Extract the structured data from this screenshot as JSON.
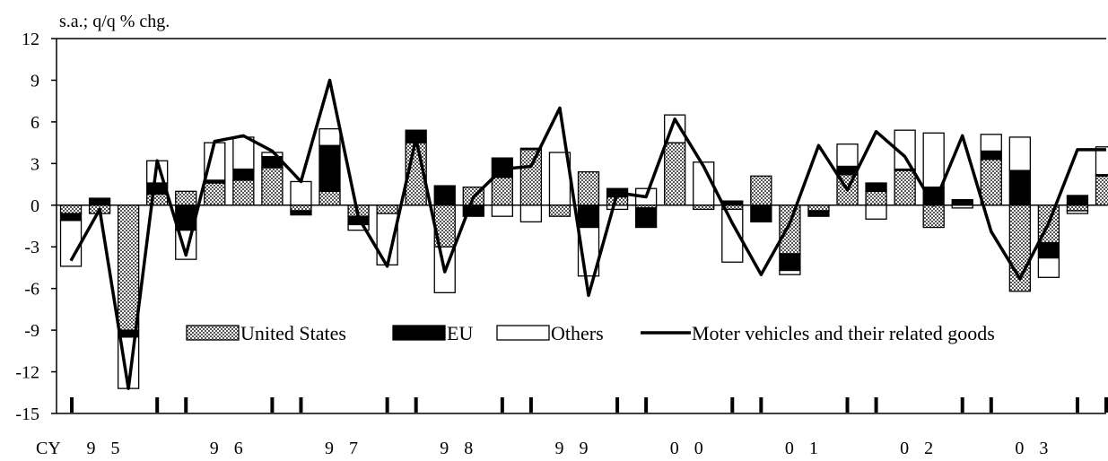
{
  "chart_data": {
    "type": "bar",
    "stacked": true,
    "unit_label": "s.a.; q/q % chg.",
    "ylim": [
      -15,
      12
    ],
    "yticks": [
      "12",
      "9",
      "6",
      "3",
      "0",
      "-3",
      "-6",
      "-9",
      "-12",
      "-15"
    ],
    "x_prefix": "CY",
    "year_labels": [
      "9 5",
      "9 6",
      "9 7",
      "9 8",
      "9 9",
      "0 0",
      "0 1",
      "0 2",
      "0 3"
    ],
    "quarters_per_year": 4,
    "legend_position": "inside-bottom-left",
    "series": [
      {
        "name": "United States",
        "pattern": "crosshatch",
        "values": [
          -0.6,
          -0.6,
          -9.0,
          0.8,
          1.0,
          1.6,
          1.8,
          2.7,
          -0.4,
          1.0,
          -0.8,
          -0.6,
          4.5,
          -3.0,
          1.3,
          2.0,
          4.0,
          -0.8,
          2.4,
          0.6,
          -0.2,
          4.5,
          -0.3,
          -0.3,
          2.1,
          -3.5,
          -0.4,
          2.2,
          1.0,
          2.5,
          -1.6,
          0.1,
          3.3,
          -6.2,
          -2.7,
          -0.4,
          2.1
        ]
      },
      {
        "name": "EU",
        "pattern": "solid-black",
        "values": [
          -0.5,
          0.5,
          -0.5,
          0.8,
          -1.8,
          0.2,
          0.8,
          0.8,
          -0.3,
          3.3,
          -0.6,
          0.0,
          0.9,
          1.4,
          -0.8,
          1.4,
          0.1,
          0.0,
          -1.6,
          0.6,
          -1.4,
          0.0,
          0.0,
          0.3,
          -1.2,
          -1.2,
          -0.4,
          0.6,
          0.6,
          0.1,
          1.3,
          0.3,
          0.6,
          2.5,
          -1.1,
          0.7,
          0.1
        ]
      },
      {
        "name": "Others",
        "pattern": "white",
        "values": [
          -3.3,
          0.0,
          -3.7,
          1.6,
          -2.1,
          2.7,
          2.3,
          0.3,
          1.7,
          1.2,
          -0.4,
          -3.7,
          0.0,
          -3.3,
          0.0,
          -0.8,
          -1.2,
          3.8,
          -3.5,
          -0.3,
          1.2,
          2.0,
          3.1,
          -3.8,
          0.0,
          -0.3,
          0.0,
          1.6,
          -1.0,
          2.8,
          3.9,
          -0.2,
          1.2,
          2.4,
          -1.4,
          -0.2,
          2.0
        ]
      }
    ],
    "line": {
      "name": "Moter vehicles and their related goods",
      "values": [
        -4.0,
        -0.3,
        -13.2,
        3.2,
        -3.6,
        4.6,
        5.0,
        3.9,
        1.7,
        9.0,
        -0.9,
        -4.4,
        4.8,
        -4.8,
        0.6,
        2.6,
        2.8,
        7.0,
        -6.5,
        0.9,
        0.6,
        6.2,
        2.8,
        -1.3,
        -5.0,
        -1.3,
        4.3,
        1.1,
        5.3,
        3.5,
        0.0,
        5.0,
        -1.9,
        -5.3,
        -1.3,
        4.0,
        4.0
      ]
    }
  }
}
